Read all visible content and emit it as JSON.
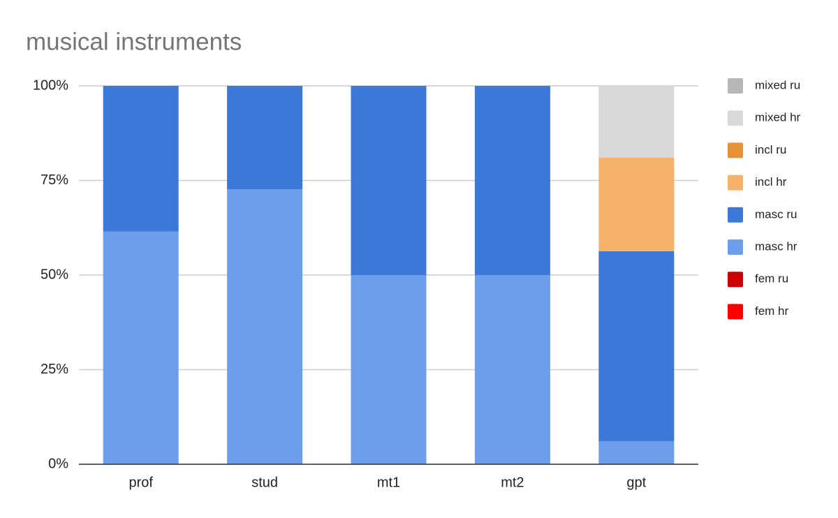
{
  "chart_data": {
    "type": "bar",
    "stacked": true,
    "title": "musical instruments",
    "categories": [
      "prof",
      "stud",
      "mt1",
      "mt2",
      "gpt"
    ],
    "series": [
      {
        "name": "fem hr",
        "color": "#ff0000",
        "values": [
          0,
          0,
          0,
          0,
          0
        ]
      },
      {
        "name": "fem ru",
        "color": "#cc0000",
        "values": [
          0,
          0,
          0,
          0,
          0
        ]
      },
      {
        "name": "masc hr",
        "color": "#6d9eeb",
        "values": [
          61.5,
          72.7,
          50,
          50,
          6.1
        ]
      },
      {
        "name": "masc ru",
        "color": "#3c78d8",
        "values": [
          38.5,
          27.3,
          50,
          50,
          50.2
        ]
      },
      {
        "name": "incl hr",
        "color": "#f6b26b",
        "values": [
          0,
          0,
          0,
          0,
          24.7
        ]
      },
      {
        "name": "incl ru",
        "color": "#e69138",
        "values": [
          0,
          0,
          0,
          0,
          0
        ]
      },
      {
        "name": "mixed hr",
        "color": "#d9d9d9",
        "values": [
          0,
          0,
          0,
          0,
          19
        ]
      },
      {
        "name": "mixed ru",
        "color": "#b7b7b7",
        "values": [
          0,
          0,
          0,
          0,
          0
        ]
      }
    ],
    "ylim": [
      0,
      100
    ],
    "yticks": [
      {
        "value": 0,
        "label": "0%"
      },
      {
        "value": 25,
        "label": "25%"
      },
      {
        "value": 50,
        "label": "50%"
      },
      {
        "value": 75,
        "label": "75%"
      },
      {
        "value": 100,
        "label": "100%"
      }
    ],
    "grid": true,
    "legend": "right"
  }
}
